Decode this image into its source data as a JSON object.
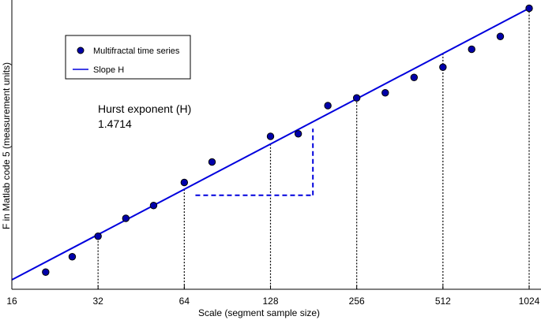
{
  "chart_data": {
    "type": "scatter",
    "title": "",
    "xlabel": "Scale (segment sample size)",
    "ylabel": "F in Matlab code 5 (measurement units)",
    "x_scale": "log2",
    "xlim": [
      16,
      1024
    ],
    "xticks": [
      "16",
      "32",
      "64",
      "128",
      "256",
      "512",
      "1024"
    ],
    "y_ticks_shown": false,
    "grid": false,
    "legend_position": "top-left",
    "series": [
      {
        "name": "Multifractal time series",
        "marker": "circle",
        "color": "#0000aa",
        "points": [
          {
            "x": 21,
            "y": 0.03
          },
          {
            "x": 26,
            "y": 0.09
          },
          {
            "x": 32,
            "y": 0.17
          },
          {
            "x": 40,
            "y": 0.24
          },
          {
            "x": 50,
            "y": 0.29
          },
          {
            "x": 64,
            "y": 0.38
          },
          {
            "x": 80,
            "y": 0.46
          },
          {
            "x": 128,
            "y": 0.56
          },
          {
            "x": 160,
            "y": 0.57
          },
          {
            "x": 203,
            "y": 0.68
          },
          {
            "x": 256,
            "y": 0.71
          },
          {
            "x": 322,
            "y": 0.73
          },
          {
            "x": 406,
            "y": 0.79
          },
          {
            "x": 512,
            "y": 0.83
          },
          {
            "x": 645,
            "y": 0.9
          },
          {
            "x": 812,
            "y": 0.95
          },
          {
            "x": 1024,
            "y": 1.06
          }
        ]
      },
      {
        "name": "Slope H",
        "type": "line",
        "color": "#0000dd",
        "points": [
          {
            "x": 16,
            "y": 0.0
          },
          {
            "x": 1024,
            "y": 1.06
          }
        ]
      }
    ],
    "dotted_verticals_at": [
      32,
      64,
      128,
      256,
      512,
      1024
    ],
    "slope_triangle": {
      "x_start": 70,
      "x_end": 180,
      "y_base": 0.33,
      "y_top": 0.59,
      "color": "#0000dd"
    },
    "annotation": {
      "label": "Hurst exponent (H)",
      "value": "1.4714"
    }
  }
}
